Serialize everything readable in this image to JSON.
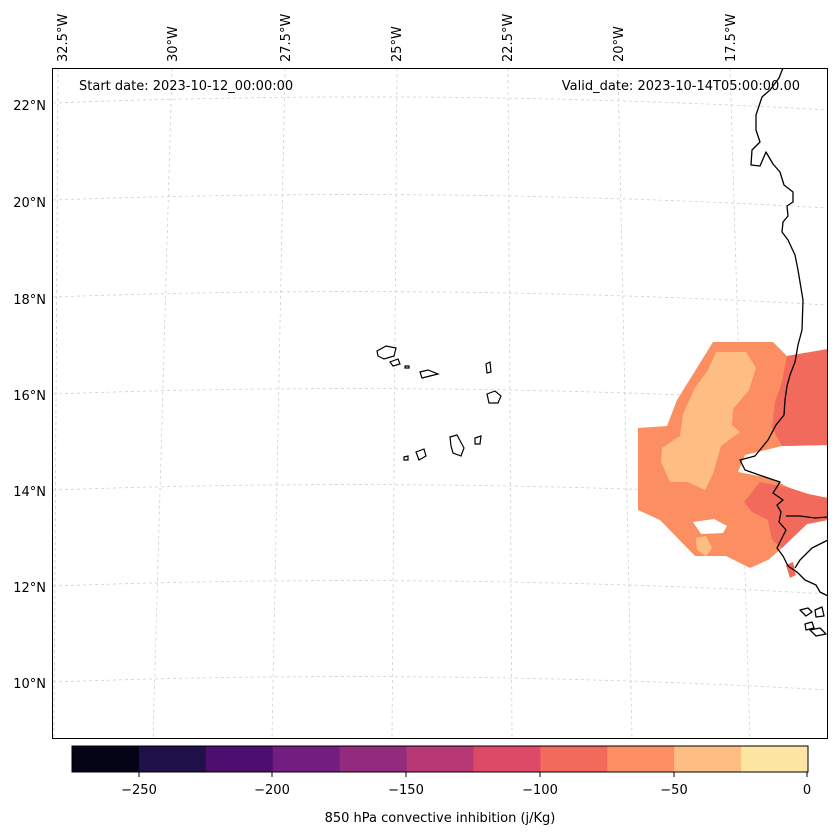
{
  "map": {
    "start_date": "Start date: 2023-10-12_00:00:00",
    "valid_date": "Valid_date: 2023-10-14T05:00:00.00",
    "lon_labels": [
      "32.5°W",
      "30°W",
      "27.5°W",
      "25°W",
      "22.5°W",
      "20°W",
      "17.5°W"
    ],
    "lat_labels": [
      "22°N",
      "20°N",
      "18°N",
      "16°N",
      "14°N",
      "12°N",
      "10°N"
    ]
  },
  "colorbar": {
    "label": "850 hPa convective inhibition (j/Kg)",
    "tick_labels": [
      "−250",
      "−200",
      "−150",
      "−100",
      "−50",
      "0"
    ],
    "colors": [
      "#050416",
      "#1f1147",
      "#4c0f70",
      "#721e80",
      "#922a7e",
      "#b83775",
      "#dd4a68",
      "#f16a5c",
      "#fb8f62",
      "#febe82",
      "#fde5a3"
    ]
  },
  "field": {
    "fill_colors": {
      "outer": "#fb8f62",
      "core": "#febe82",
      "edge": "#f16a5c"
    }
  }
}
